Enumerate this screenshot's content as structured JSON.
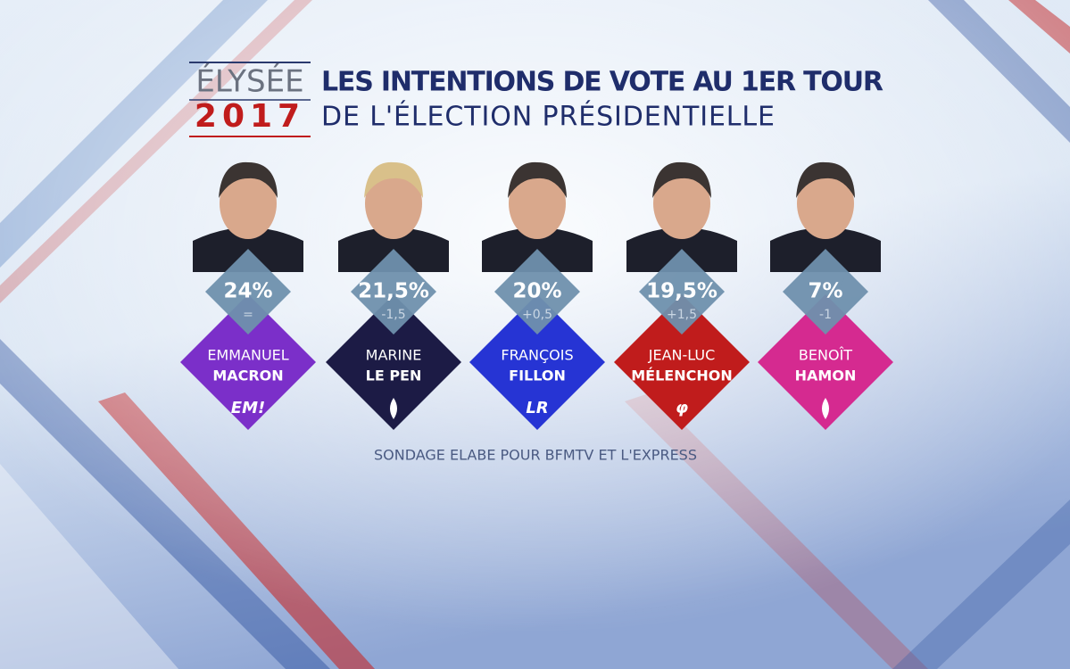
{
  "header": {
    "brand_top": "ÉLYSÉE",
    "brand_year": "2017",
    "title": "LES INTENTIONS DE VOTE AU 1ER TOUR",
    "subtitle": "DE L'ÉLECTION PRÉSIDENTIELLE"
  },
  "candidates": [
    {
      "percent": "24%",
      "change": "=",
      "first_name": "EMMANUEL",
      "last_name": "MACRON",
      "logo": "EM!",
      "color": "#7b2fc9"
    },
    {
      "percent": "21,5%",
      "change": "-1,5",
      "first_name": "MARINE",
      "last_name": "LE PEN",
      "color": "#1c1b45"
    },
    {
      "percent": "20%",
      "change": "+0,5",
      "first_name": "FRANÇOIS",
      "last_name": "FILLON",
      "logo": "LR",
      "color": "#2634d4"
    },
    {
      "percent": "19,5%",
      "change": "+1,5",
      "first_name": "JEAN-LUC",
      "last_name": "MÉLENCHON",
      "logo": "φ",
      "color": "#c01c1c"
    },
    {
      "percent": "7%",
      "change": "-1",
      "first_name": "BENOÎT",
      "last_name": "HAMON",
      "color": "#d52a90"
    }
  ],
  "footer": "SONDAGE ELABE POUR BFMTV ET L'EXPRESS"
}
